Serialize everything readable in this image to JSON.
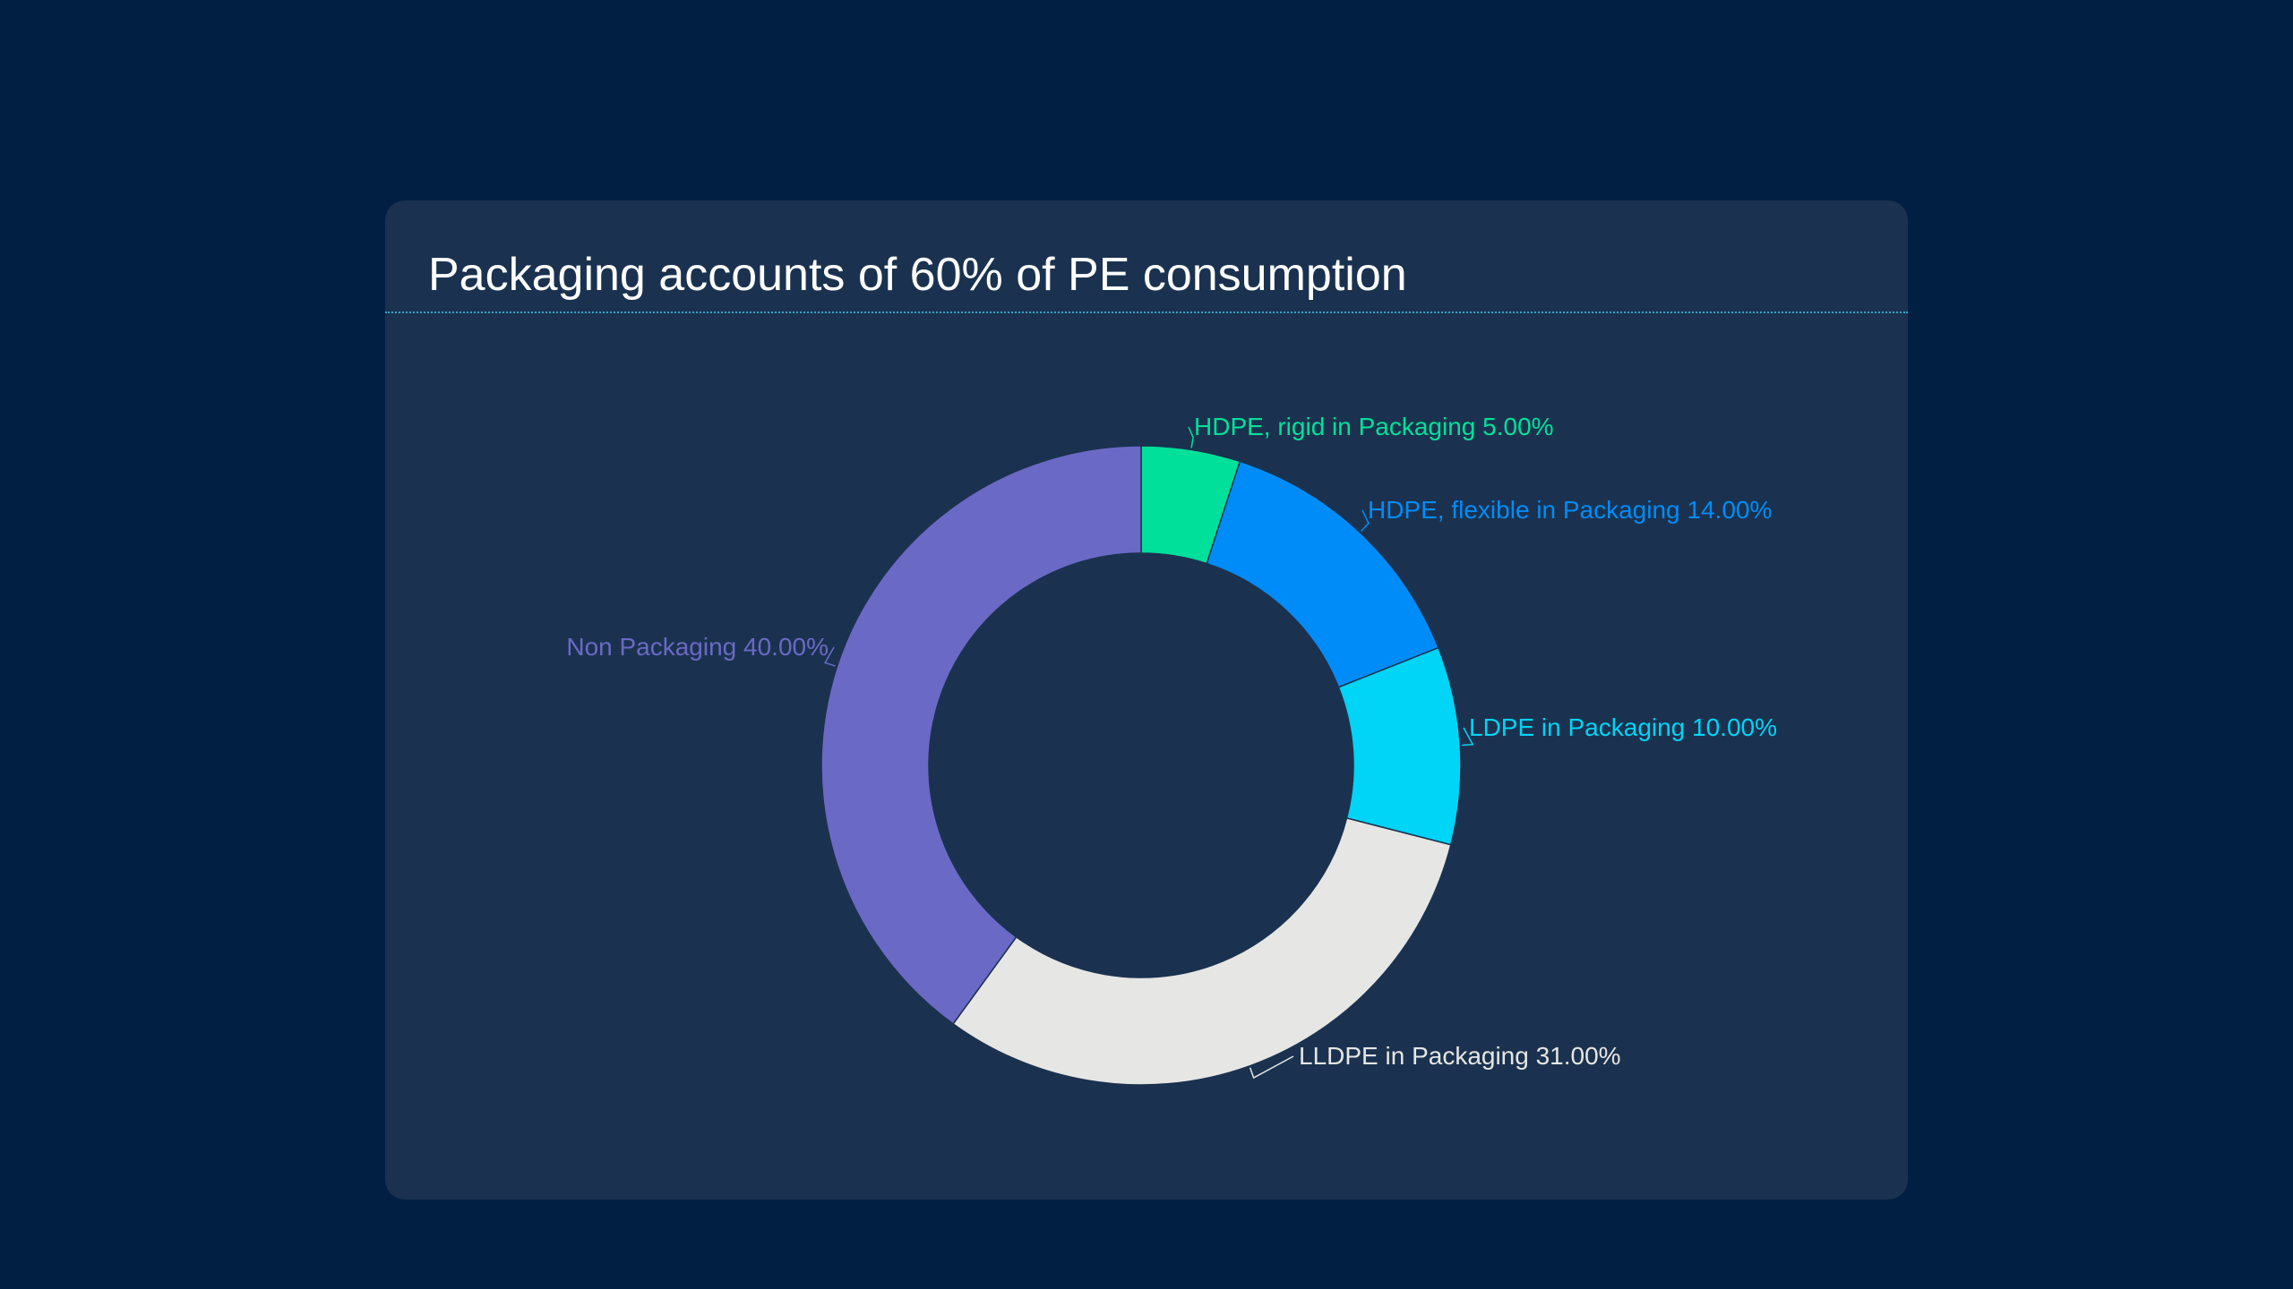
{
  "card": {
    "title": "Packaging accounts of 60% of PE consumption"
  },
  "chart_data": {
    "type": "pie",
    "subtype": "donut",
    "title": "Packaging accounts of 60% of PE consumption",
    "legend": "none",
    "slices": [
      {
        "label": "HDPE, rigid in Packaging",
        "value": 5.0,
        "display": "HDPE, rigid in Packaging 5.00%",
        "color": "#00e09a"
      },
      {
        "label": "HDPE, flexible in Packaging",
        "value": 14.0,
        "display": "HDPE, flexible in Packaging 14.00%",
        "color": "#008cf8"
      },
      {
        "label": "LDPE in Packaging",
        "value": 10.0,
        "display": "LDPE in Packaging 10.00%",
        "color": "#00d4f7"
      },
      {
        "label": "LLDPE in Packaging",
        "value": 31.0,
        "display": "LLDPE in Packaging 31.00%",
        "color": "#e6e6e4"
      },
      {
        "label": "Non Packaging",
        "value": 40.0,
        "display": "Non Packaging 40.00%",
        "color": "#6b69c6"
      }
    ]
  },
  "colors": {
    "page_background": "#001f42",
    "card_background": "#1a324f",
    "title_rule": "#2aa6c9",
    "title_text": "#ffffff"
  }
}
